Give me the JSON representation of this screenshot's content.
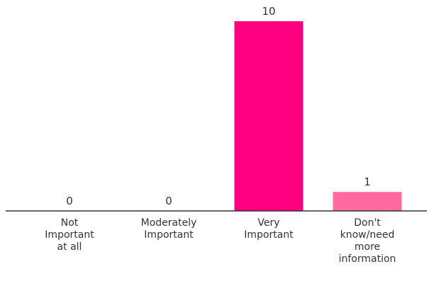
{
  "chart_data": {
    "type": "bar",
    "categories": [
      [
        "Not",
        "Important",
        "at all"
      ],
      [
        "Moderately",
        "Important"
      ],
      [
        "Very",
        "Important"
      ],
      [
        "Don't",
        "know/need",
        "more",
        "information"
      ]
    ],
    "values": [
      0,
      0,
      10,
      1
    ],
    "data_labels": [
      "0",
      "0",
      "10",
      "1"
    ],
    "colors": [
      "#ff0080",
      "#ff0080",
      "#ff0080",
      "#ff6aa2"
    ],
    "ylim": [
      0,
      10
    ],
    "grid": false,
    "legend": "none",
    "title": "",
    "xlabel": "",
    "ylabel": ""
  }
}
